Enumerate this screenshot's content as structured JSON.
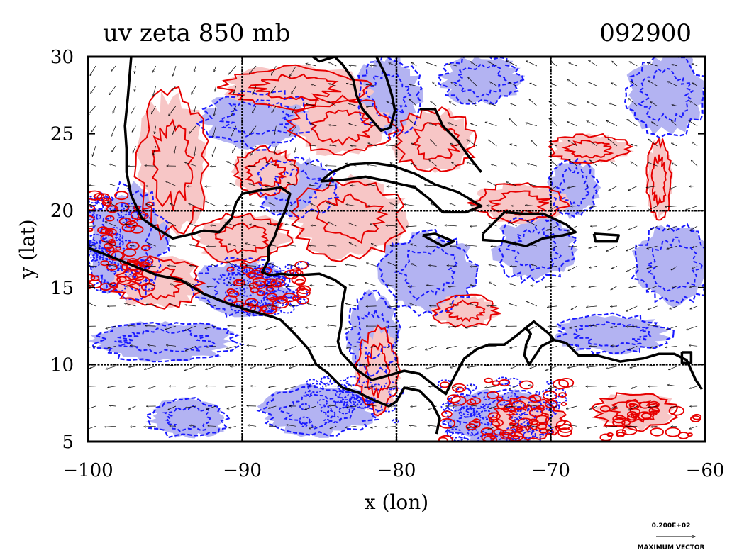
{
  "chart_data": {
    "type": "contour",
    "title": "uv zeta 850 mb",
    "time_label": "092900",
    "xlabel": "x (lon)",
    "ylabel": "y (lat)",
    "xlim": [
      -100,
      -60
    ],
    "ylim": [
      5,
      30
    ],
    "x_ticks": [
      -100,
      -90,
      -80,
      -70,
      -60
    ],
    "y_ticks": [
      5,
      10,
      15,
      20,
      25,
      30
    ],
    "x_tick_labels": [
      "−100",
      "−90",
      "−80",
      "−70",
      "−60"
    ],
    "y_tick_labels": [
      "5",
      "10",
      "15",
      "20",
      "25",
      "30"
    ],
    "grid": true,
    "grid_x": [
      -90,
      -80,
      -70
    ],
    "grid_y": [
      10,
      20
    ],
    "colors": {
      "positive_fill": "#f7c6c6",
      "positive_contour": "#e60000",
      "negative_fill": "#b3b3f2",
      "negative_contour": "#1a1aff",
      "coastline": "#000000",
      "vector": "#000000"
    },
    "vector_legend": {
      "magnitude_label": "0.200E+02",
      "caption": "MAXIMUM VECTOR"
    },
    "series": [
      {
        "name": "positive vorticity",
        "regions": [
          {
            "cx": -94.5,
            "cy": 23.0,
            "rx": 2.2,
            "ry": 4.5
          },
          {
            "cx": -86.5,
            "cy": 28.0,
            "rx": 4.5,
            "ry": 1.3
          },
          {
            "cx": -83.5,
            "cy": 25.5,
            "rx": 3.2,
            "ry": 1.8
          },
          {
            "cx": -83.0,
            "cy": 19.5,
            "rx": 3.5,
            "ry": 2.5
          },
          {
            "cx": -90.0,
            "cy": 18.2,
            "rx": 3.0,
            "ry": 1.5
          },
          {
            "cx": -95.5,
            "cy": 15.3,
            "rx": 2.8,
            "ry": 1.6
          },
          {
            "cx": -77.5,
            "cy": 24.5,
            "rx": 2.5,
            "ry": 2.0
          },
          {
            "cx": -72.0,
            "cy": 20.5,
            "rx": 3.0,
            "ry": 1.2
          },
          {
            "cx": -67.5,
            "cy": 24.0,
            "rx": 2.5,
            "ry": 0.9
          },
          {
            "cx": -81.2,
            "cy": 9.6,
            "rx": 1.3,
            "ry": 2.6
          },
          {
            "cx": -75.5,
            "cy": 13.5,
            "rx": 2.0,
            "ry": 1.0
          },
          {
            "cx": -64.5,
            "cy": 7.0,
            "rx": 2.5,
            "ry": 1.2
          },
          {
            "cx": -71.5,
            "cy": 6.5,
            "rx": 2.2,
            "ry": 1.3
          },
          {
            "cx": -63.0,
            "cy": 22.0,
            "rx": 0.8,
            "ry": 2.5
          },
          {
            "cx": -88.5,
            "cy": 22.5,
            "rx": 2.0,
            "ry": 1.5
          }
        ]
      },
      {
        "name": "negative vorticity",
        "regions": [
          {
            "cx": -89.0,
            "cy": 26.0,
            "rx": 3.5,
            "ry": 1.8
          },
          {
            "cx": -86.5,
            "cy": 21.5,
            "rx": 2.5,
            "ry": 1.8
          },
          {
            "cx": -80.5,
            "cy": 27.5,
            "rx": 2.0,
            "ry": 2.5
          },
          {
            "cx": -74.5,
            "cy": 28.5,
            "rx": 2.5,
            "ry": 1.5
          },
          {
            "cx": -62.5,
            "cy": 27.5,
            "rx": 2.5,
            "ry": 2.5
          },
          {
            "cx": -97.5,
            "cy": 18.0,
            "rx": 2.5,
            "ry": 3.5
          },
          {
            "cx": -90.0,
            "cy": 15.0,
            "rx": 3.0,
            "ry": 1.8
          },
          {
            "cx": -95.0,
            "cy": 11.5,
            "rx": 4.5,
            "ry": 1.2
          },
          {
            "cx": -78.0,
            "cy": 16.0,
            "rx": 3.0,
            "ry": 2.5
          },
          {
            "cx": -71.0,
            "cy": 17.5,
            "rx": 2.5,
            "ry": 2.0
          },
          {
            "cx": -73.5,
            "cy": 6.5,
            "rx": 3.5,
            "ry": 1.8
          },
          {
            "cx": -85.0,
            "cy": 7.0,
            "rx": 3.5,
            "ry": 1.6
          },
          {
            "cx": -62.0,
            "cy": 16.5,
            "rx": 2.5,
            "ry": 2.5
          },
          {
            "cx": -66.0,
            "cy": 12.0,
            "rx": 3.5,
            "ry": 1.2
          },
          {
            "cx": -81.5,
            "cy": 12.0,
            "rx": 1.6,
            "ry": 2.5
          },
          {
            "cx": -93.5,
            "cy": 6.5,
            "rx": 2.5,
            "ry": 1.2
          },
          {
            "cx": -68.5,
            "cy": 21.5,
            "rx": 1.5,
            "ry": 1.8
          }
        ]
      }
    ],
    "coastlines": [
      [
        [
          -100,
          17.6
        ],
        [
          -97.5,
          16.6
        ],
        [
          -95.5,
          15.8
        ],
        [
          -94,
          15.5
        ],
        [
          -92.5,
          14.6
        ],
        [
          -91,
          14.0
        ],
        [
          -89.5,
          13.5
        ],
        [
          -88,
          13.1
        ],
        [
          -87.5,
          12.9
        ],
        [
          -86.5,
          11.9
        ],
        [
          -85.7,
          11.0
        ],
        [
          -85.2,
          10.0
        ],
        [
          -84.5,
          9.5
        ],
        [
          -83.5,
          8.5
        ],
        [
          -82.5,
          8.2
        ],
        [
          -81.5,
          7.7
        ],
        [
          -80.5,
          7.3
        ],
        [
          -80,
          7.6
        ],
        [
          -79.5,
          8.5
        ],
        [
          -78.5,
          8.3
        ],
        [
          -77.7,
          7.5
        ],
        [
          -77.2,
          6.5
        ],
        [
          -77.4,
          5.5
        ]
      ],
      [
        [
          -97.2,
          30
        ],
        [
          -97.4,
          27.5
        ],
        [
          -97.6,
          25.5
        ],
        [
          -97.5,
          24
        ],
        [
          -97.5,
          22.5
        ],
        [
          -97.2,
          21
        ],
        [
          -96.5,
          19.5
        ],
        [
          -95.5,
          18.8
        ],
        [
          -94.5,
          18.2
        ],
        [
          -93.2,
          18.5
        ],
        [
          -92.5,
          18.7
        ],
        [
          -91.5,
          18.6
        ],
        [
          -90.7,
          19.5
        ],
        [
          -90.4,
          20.5
        ],
        [
          -90,
          21.1
        ],
        [
          -89,
          21.3
        ],
        [
          -87.5,
          21.5
        ],
        [
          -86.9,
          21.1
        ],
        [
          -87.2,
          20
        ],
        [
          -87.6,
          19.2
        ],
        [
          -87.9,
          18.3
        ],
        [
          -88.3,
          17.6
        ],
        [
          -88.3,
          16.8
        ],
        [
          -88.7,
          16.0
        ],
        [
          -88.2,
          15.8
        ],
        [
          -87.5,
          15.9
        ],
        [
          -86.5,
          15.8
        ],
        [
          -85,
          15.9
        ],
        [
          -84,
          15.5
        ],
        [
          -83.3,
          15.0
        ],
        [
          -83.5,
          14.0
        ],
        [
          -83.6,
          12.5
        ],
        [
          -83.8,
          11.5
        ],
        [
          -83.6,
          10.8
        ],
        [
          -82.5,
          9.6
        ],
        [
          -81.6,
          9.0
        ],
        [
          -80.5,
          9.3
        ],
        [
          -79.5,
          9.6
        ],
        [
          -78.5,
          9.4
        ],
        [
          -77.5,
          8.6
        ],
        [
          -76.8,
          8.1
        ],
        [
          -76.2,
          9.3
        ],
        [
          -75.6,
          10.4
        ],
        [
          -74.8,
          11.0
        ],
        [
          -74,
          11.3
        ],
        [
          -73,
          11.3
        ],
        [
          -72.2,
          11.9
        ],
        [
          -71.6,
          12.4
        ],
        [
          -71.3,
          12.0
        ],
        [
          -71.6,
          11.3
        ],
        [
          -71.7,
          10.6
        ],
        [
          -71.4,
          10.0
        ],
        [
          -70.6,
          11.2
        ],
        [
          -69.8,
          11.6
        ],
        [
          -69,
          11.4
        ],
        [
          -68.2,
          10.6
        ],
        [
          -67,
          10.6
        ],
        [
          -65.5,
          10.2
        ],
        [
          -64,
          10.4
        ],
        [
          -63,
          10.7
        ],
        [
          -62,
          10.7
        ],
        [
          -61.2,
          10.3
        ],
        [
          -60.6,
          9.0
        ],
        [
          -60.2,
          8.4
        ]
      ],
      [
        [
          -89.5,
          30.2
        ],
        [
          -89,
          30.4
        ],
        [
          -88,
          30.6
        ],
        [
          -87,
          30.4
        ],
        [
          -86,
          30.4
        ],
        [
          -85,
          29.7
        ],
        [
          -84,
          30.0
        ],
        [
          -83.5,
          29.5
        ],
        [
          -82.8,
          28.5
        ],
        [
          -82.6,
          27.5
        ],
        [
          -82.2,
          26.6
        ],
        [
          -81.6,
          25.9
        ],
        [
          -81.0,
          25.2
        ],
        [
          -80.4,
          25.4
        ],
        [
          -80.1,
          26.5
        ],
        [
          -80.3,
          27.5
        ],
        [
          -80.7,
          28.8
        ],
        [
          -81.3,
          30.0
        ],
        [
          -81.4,
          30.6
        ]
      ],
      [
        [
          -84.9,
          21.9
        ],
        [
          -84.2,
          22.5
        ],
        [
          -83,
          23.0
        ],
        [
          -81.5,
          23.1
        ],
        [
          -80.2,
          22.9
        ],
        [
          -78.8,
          22.4
        ],
        [
          -77.5,
          21.7
        ],
        [
          -76,
          21.2
        ],
        [
          -74.5,
          20.3
        ],
        [
          -75.5,
          19.9
        ],
        [
          -77,
          19.9
        ],
        [
          -77.8,
          20.7
        ],
        [
          -78.8,
          21.5
        ],
        [
          -80.5,
          21.9
        ],
        [
          -82,
          22.2
        ],
        [
          -83.5,
          22.0
        ],
        [
          -84.9,
          21.9
        ]
      ],
      [
        [
          -78.3,
          18.4
        ],
        [
          -77.5,
          18.5
        ],
        [
          -76.3,
          18.0
        ],
        [
          -77.0,
          17.7
        ],
        [
          -78.3,
          18.4
        ]
      ],
      [
        [
          -74.4,
          18.5
        ],
        [
          -73,
          19.9
        ],
        [
          -71.8,
          19.8
        ],
        [
          -70.5,
          19.8
        ],
        [
          -69,
          19.1
        ],
        [
          -68.4,
          18.6
        ],
        [
          -69.2,
          18.4
        ],
        [
          -70.5,
          18.2
        ],
        [
          -71.6,
          17.7
        ],
        [
          -73.0,
          18.0
        ],
        [
          -74.4,
          18.1
        ],
        [
          -74.4,
          18.5
        ]
      ],
      [
        [
          -67.2,
          18.5
        ],
        [
          -65.6,
          18.4
        ],
        [
          -65.7,
          18.0
        ],
        [
          -67.1,
          18.0
        ],
        [
          -67.2,
          18.5
        ]
      ],
      [
        [
          -78.5,
          26.6
        ],
        [
          -77.5,
          26.6
        ],
        [
          -77.0,
          25.5
        ],
        [
          -76.0,
          24.5
        ],
        [
          -75.3,
          23.5
        ],
        [
          -74.5,
          22.5
        ]
      ],
      [
        [
          -61.5,
          10.8
        ],
        [
          -60.9,
          10.8
        ],
        [
          -60.9,
          10.1
        ],
        [
          -61.5,
          10.1
        ],
        [
          -61.5,
          10.8
        ]
      ],
      [
        [
          -71.6,
          12.4
        ],
        [
          -71.1,
          12.8
        ],
        [
          -70.1,
          12.0
        ],
        [
          -69.8,
          11.6
        ]
      ]
    ]
  }
}
